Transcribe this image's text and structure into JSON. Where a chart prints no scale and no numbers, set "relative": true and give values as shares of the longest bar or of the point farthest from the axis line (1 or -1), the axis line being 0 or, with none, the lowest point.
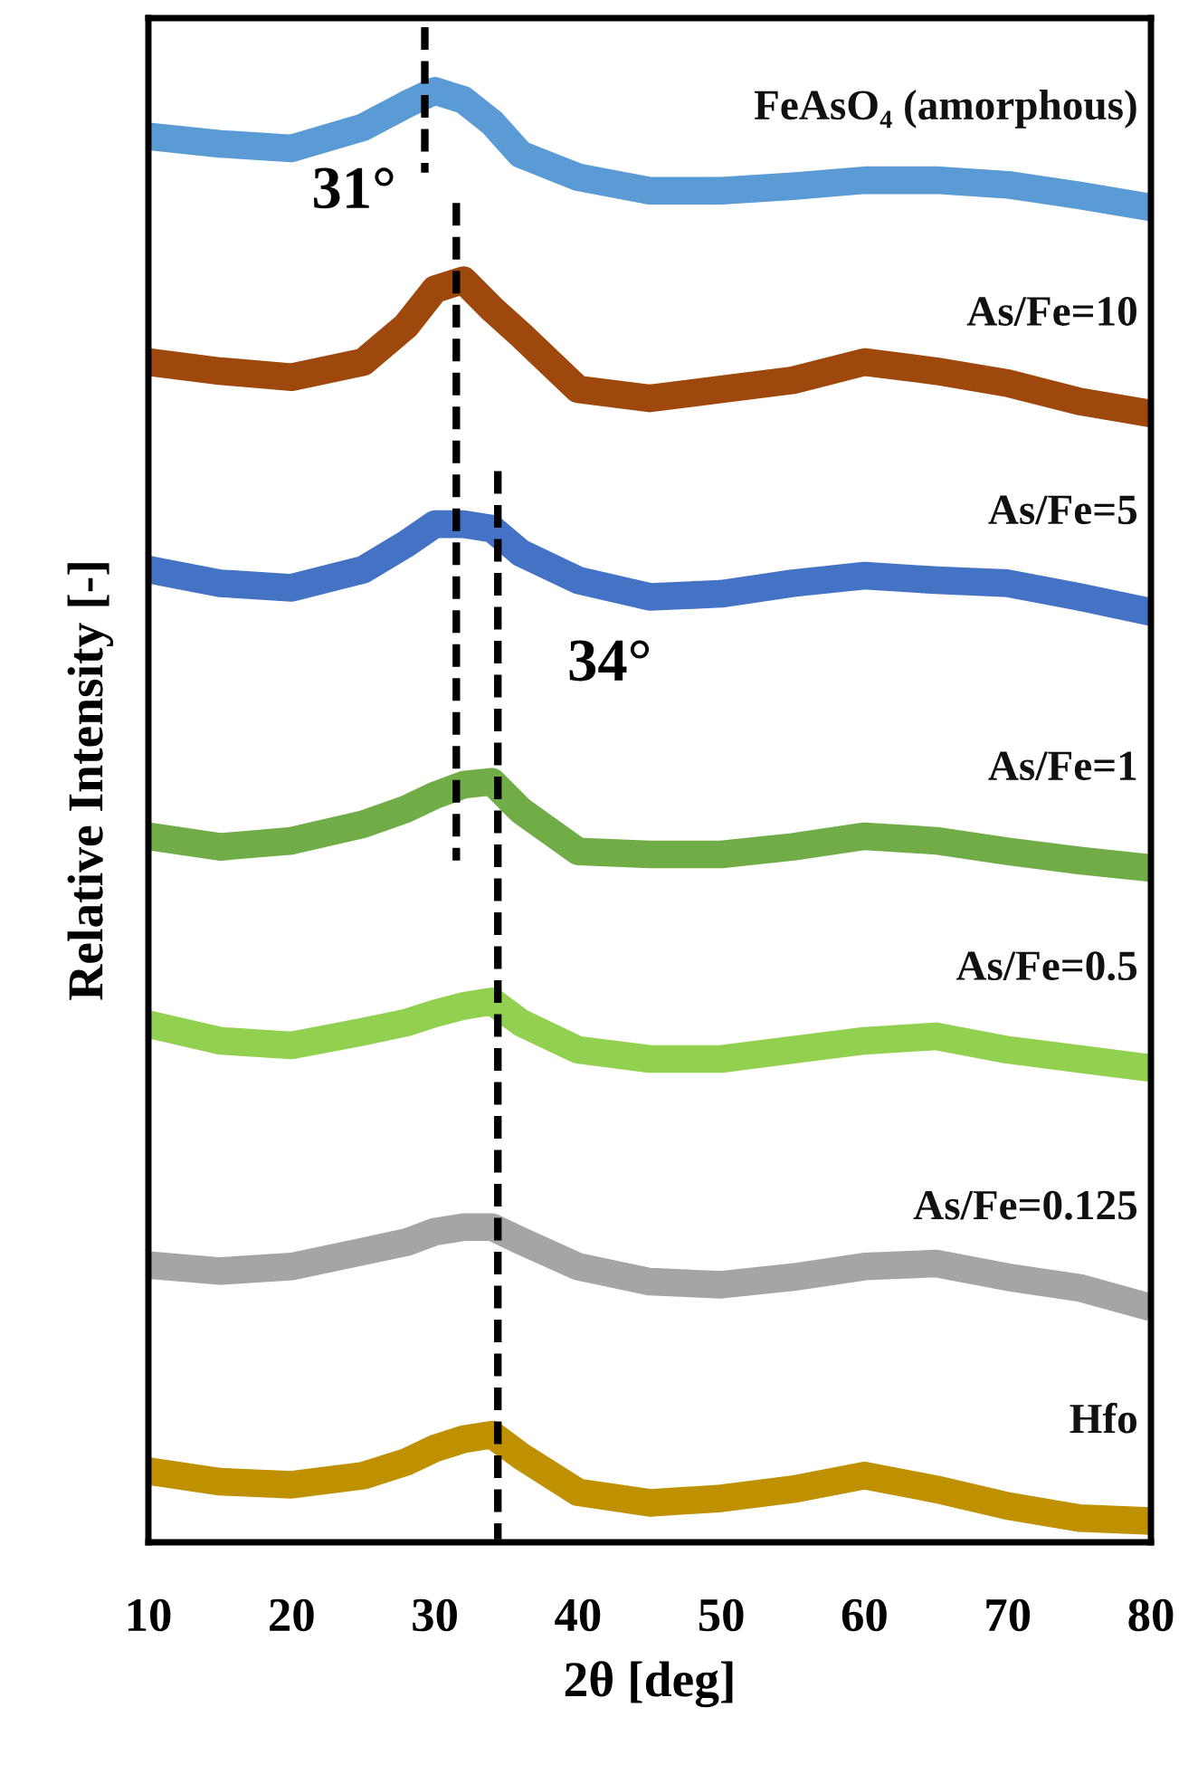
{
  "chart_data": {
    "type": "line",
    "relative": true,
    "xlabel": "2θ [deg]",
    "ylabel": "Relative Intensity [-]",
    "xlim": [
      10,
      80
    ],
    "xticks": [
      10,
      20,
      30,
      40,
      50,
      60,
      70,
      80
    ],
    "tick_labels": "x",
    "grid": false,
    "legend": false,
    "marker": "none",
    "x": [
      10,
      15,
      20,
      25,
      28,
      30,
      32,
      34,
      36,
      40,
      45,
      50,
      55,
      60,
      65,
      70,
      75,
      80
    ],
    "series": [
      {
        "name": "FeAsO₄ (amorphous)",
        "color": "#5b9bd5",
        "values": [
          0.928,
          0.923,
          0.92,
          0.934,
          0.949,
          0.958,
          0.952,
          0.937,
          0.916,
          0.901,
          0.892,
          0.892,
          0.895,
          0.899,
          0.899,
          0.896,
          0.889,
          0.881
        ]
      },
      {
        "name": "As/Fe=10",
        "color": "#9e480e",
        "values": [
          0.779,
          0.773,
          0.769,
          0.779,
          0.803,
          0.827,
          0.833,
          0.814,
          0.797,
          0.761,
          0.755,
          0.761,
          0.767,
          0.779,
          0.773,
          0.765,
          0.753,
          0.745
        ]
      },
      {
        "name": "As/Fe=5",
        "color": "#4472c4",
        "values": [
          0.642,
          0.633,
          0.63,
          0.642,
          0.659,
          0.672,
          0.672,
          0.669,
          0.653,
          0.635,
          0.624,
          0.626,
          0.633,
          0.638,
          0.635,
          0.633,
          0.624,
          0.614
        ]
      },
      {
        "name": "As/Fe=1",
        "color": "#70ad47",
        "values": [
          0.466,
          0.459,
          0.463,
          0.474,
          0.484,
          0.493,
          0.5,
          0.502,
          0.483,
          0.456,
          0.454,
          0.454,
          0.459,
          0.466,
          0.463,
          0.456,
          0.45,
          0.445
        ]
      },
      {
        "name": "As/Fe=0.5",
        "color": "#92d050",
        "values": [
          0.342,
          0.331,
          0.328,
          0.337,
          0.343,
          0.349,
          0.354,
          0.357,
          0.343,
          0.325,
          0.319,
          0.319,
          0.325,
          0.331,
          0.334,
          0.325,
          0.319,
          0.313
        ]
      },
      {
        "name": "As/Fe=0.125",
        "color": "#a5a5a5",
        "values": [
          0.183,
          0.179,
          0.182,
          0.192,
          0.198,
          0.205,
          0.208,
          0.208,
          0.199,
          0.182,
          0.172,
          0.17,
          0.175,
          0.182,
          0.184,
          0.175,
          0.168,
          0.155
        ]
      },
      {
        "name": "Hfo",
        "color": "#bf9000",
        "values": [
          0.047,
          0.04,
          0.038,
          0.044,
          0.053,
          0.062,
          0.068,
          0.071,
          0.057,
          0.033,
          0.026,
          0.029,
          0.035,
          0.044,
          0.035,
          0.024,
          0.016,
          0.014
        ]
      },
      {
        "type": "line",
        "color": "#000000",
        "line_style": "dashed",
        "x": [
          29.3,
          29.3
        ],
        "values": [
          1,
          0.904
        ]
      },
      {
        "type": "line",
        "color": "#000000",
        "line_style": "dashed",
        "x": [
          31.5,
          31.5
        ],
        "values": [
          0.884,
          0.45
        ]
      },
      {
        "type": "line",
        "color": "#000000",
        "line_style": "dashed",
        "x": [
          34.4,
          34.4
        ],
        "values": [
          0.707,
          0.002
        ]
      }
    ],
    "annotations": [
      "31°",
      "34°"
    ]
  }
}
